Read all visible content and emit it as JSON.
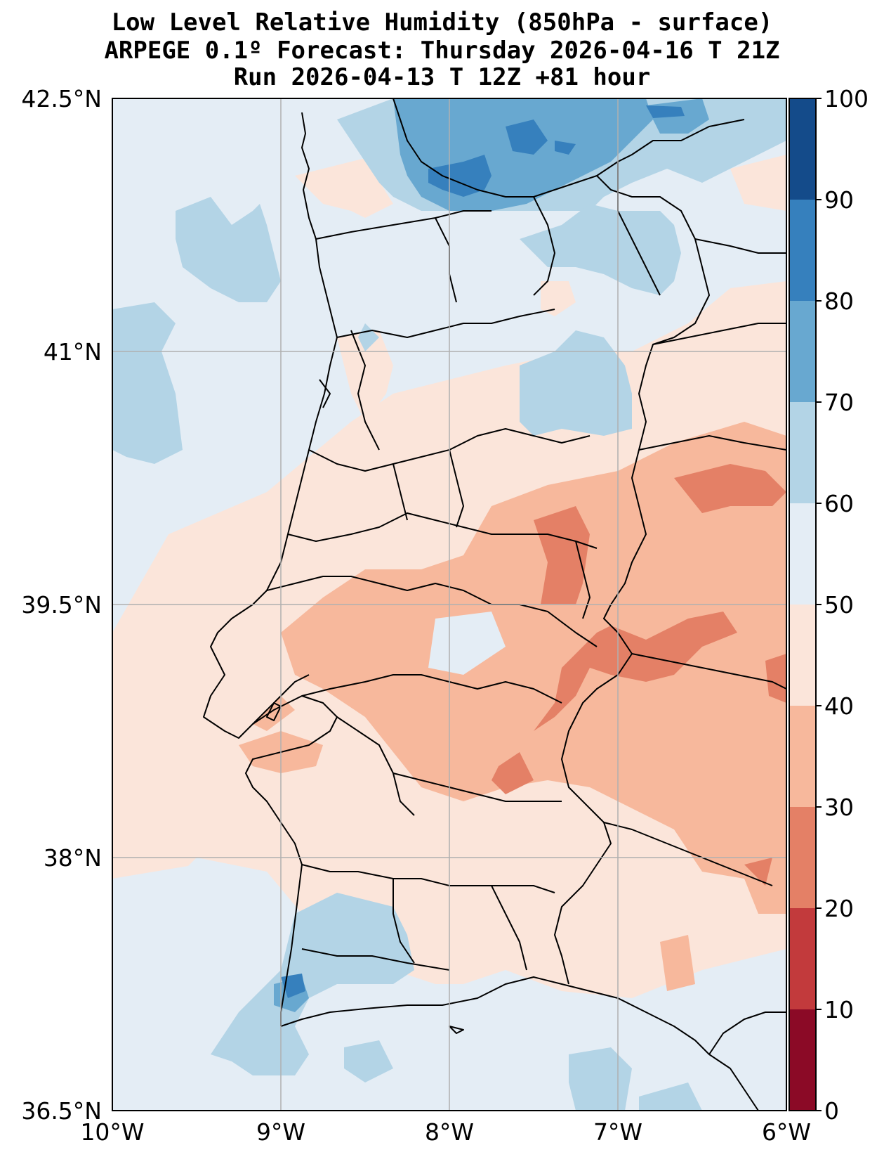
{
  "title": {
    "line1": "Low Level Relative Humidity (850hPa - surface)",
    "line2": "ARPEGE 0.1º Forecast: Thursday 2026-04-16 T 21Z",
    "line3": "Run 2026-04-13 T 12Z +81 hour"
  },
  "map": {
    "lon_range": [
      -10,
      -6
    ],
    "lat_range": [
      36.5,
      42.5
    ],
    "lat_ticks": [
      "42.5°N",
      "41°N",
      "39.5°N",
      "38°N",
      "36.5°N"
    ],
    "lon_ticks": [
      "10°W",
      "9°W",
      "8°W",
      "7°W",
      "6°W"
    ],
    "background_color": "#e4edf5"
  },
  "colorbar": {
    "levels": [
      0,
      10,
      20,
      30,
      40,
      50,
      60,
      70,
      80,
      90,
      100
    ],
    "colors": [
      "#8b0a26",
      "#c23a3c",
      "#e48066",
      "#f7b89c",
      "#fbe5da",
      "#e4edf5",
      "#b3d4e6",
      "#68a8d0",
      "#3680bd",
      "#144b8a"
    ],
    "labels": [
      "0",
      "10",
      "20",
      "30",
      "40",
      "50",
      "60",
      "70",
      "80",
      "90",
      "100"
    ]
  }
}
